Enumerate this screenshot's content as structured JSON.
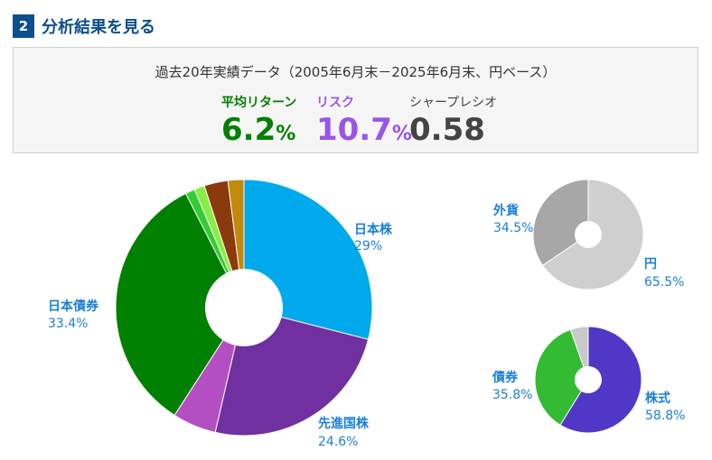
{
  "section": {
    "number": "2",
    "title": "分析結果を見る"
  },
  "summary": {
    "period": "過去20年実績データ（2005年6月末－2025年6月末、円ベース）",
    "return": {
      "label": "平均リターン",
      "value": "6.2",
      "unit": "%"
    },
    "risk": {
      "label": "リスク",
      "value": "10.7",
      "unit": "%"
    },
    "sharpe": {
      "label": "シャープレシオ",
      "value": "0.58"
    }
  },
  "colors": {
    "header": "#0b4f8c",
    "label_blue": "#1a7fd6",
    "return_green": "#008000",
    "risk_purple": "#9955e8"
  },
  "chart_data": [
    {
      "type": "pie",
      "donut": true,
      "slices": [
        {
          "name": "日本株",
          "value": 29.0,
          "label": "29%",
          "color": "#00a9ec",
          "shown": true
        },
        {
          "name": "先進国株",
          "value": 24.6,
          "label": "24.6%",
          "color": "#7030a0",
          "shown": true
        },
        {
          "value": 5.5,
          "color": "#b44fc3",
          "shown": false
        },
        {
          "name": "日本債券",
          "value": 33.4,
          "label": "33.4%",
          "color": "#008000",
          "shown": true
        },
        {
          "value": 1.2,
          "color": "#33cc33",
          "shown": false
        },
        {
          "value": 1.3,
          "color": "#88ee44",
          "shown": false
        },
        {
          "value": 3.0,
          "color": "#8b3a0e",
          "shown": false
        },
        {
          "value": 2.0,
          "color": "#c08a0c",
          "shown": false
        }
      ]
    },
    {
      "type": "pie",
      "donut": true,
      "slices": [
        {
          "name": "円",
          "value": 65.5,
          "label": "65.5%",
          "color": "#cfcfcf",
          "shown": true
        },
        {
          "name": "外貨",
          "value": 34.5,
          "label": "34.5%",
          "color": "#a7a7a7",
          "shown": true
        }
      ]
    },
    {
      "type": "pie",
      "donut": true,
      "slices": [
        {
          "name": "株式",
          "value": 58.8,
          "label": "58.8%",
          "color": "#5037c5",
          "shown": true
        },
        {
          "name": "債券",
          "value": 35.8,
          "label": "35.8%",
          "color": "#33bb33",
          "shown": true
        },
        {
          "value": 5.4,
          "color": "#c9c9c9",
          "shown": false
        }
      ]
    }
  ]
}
